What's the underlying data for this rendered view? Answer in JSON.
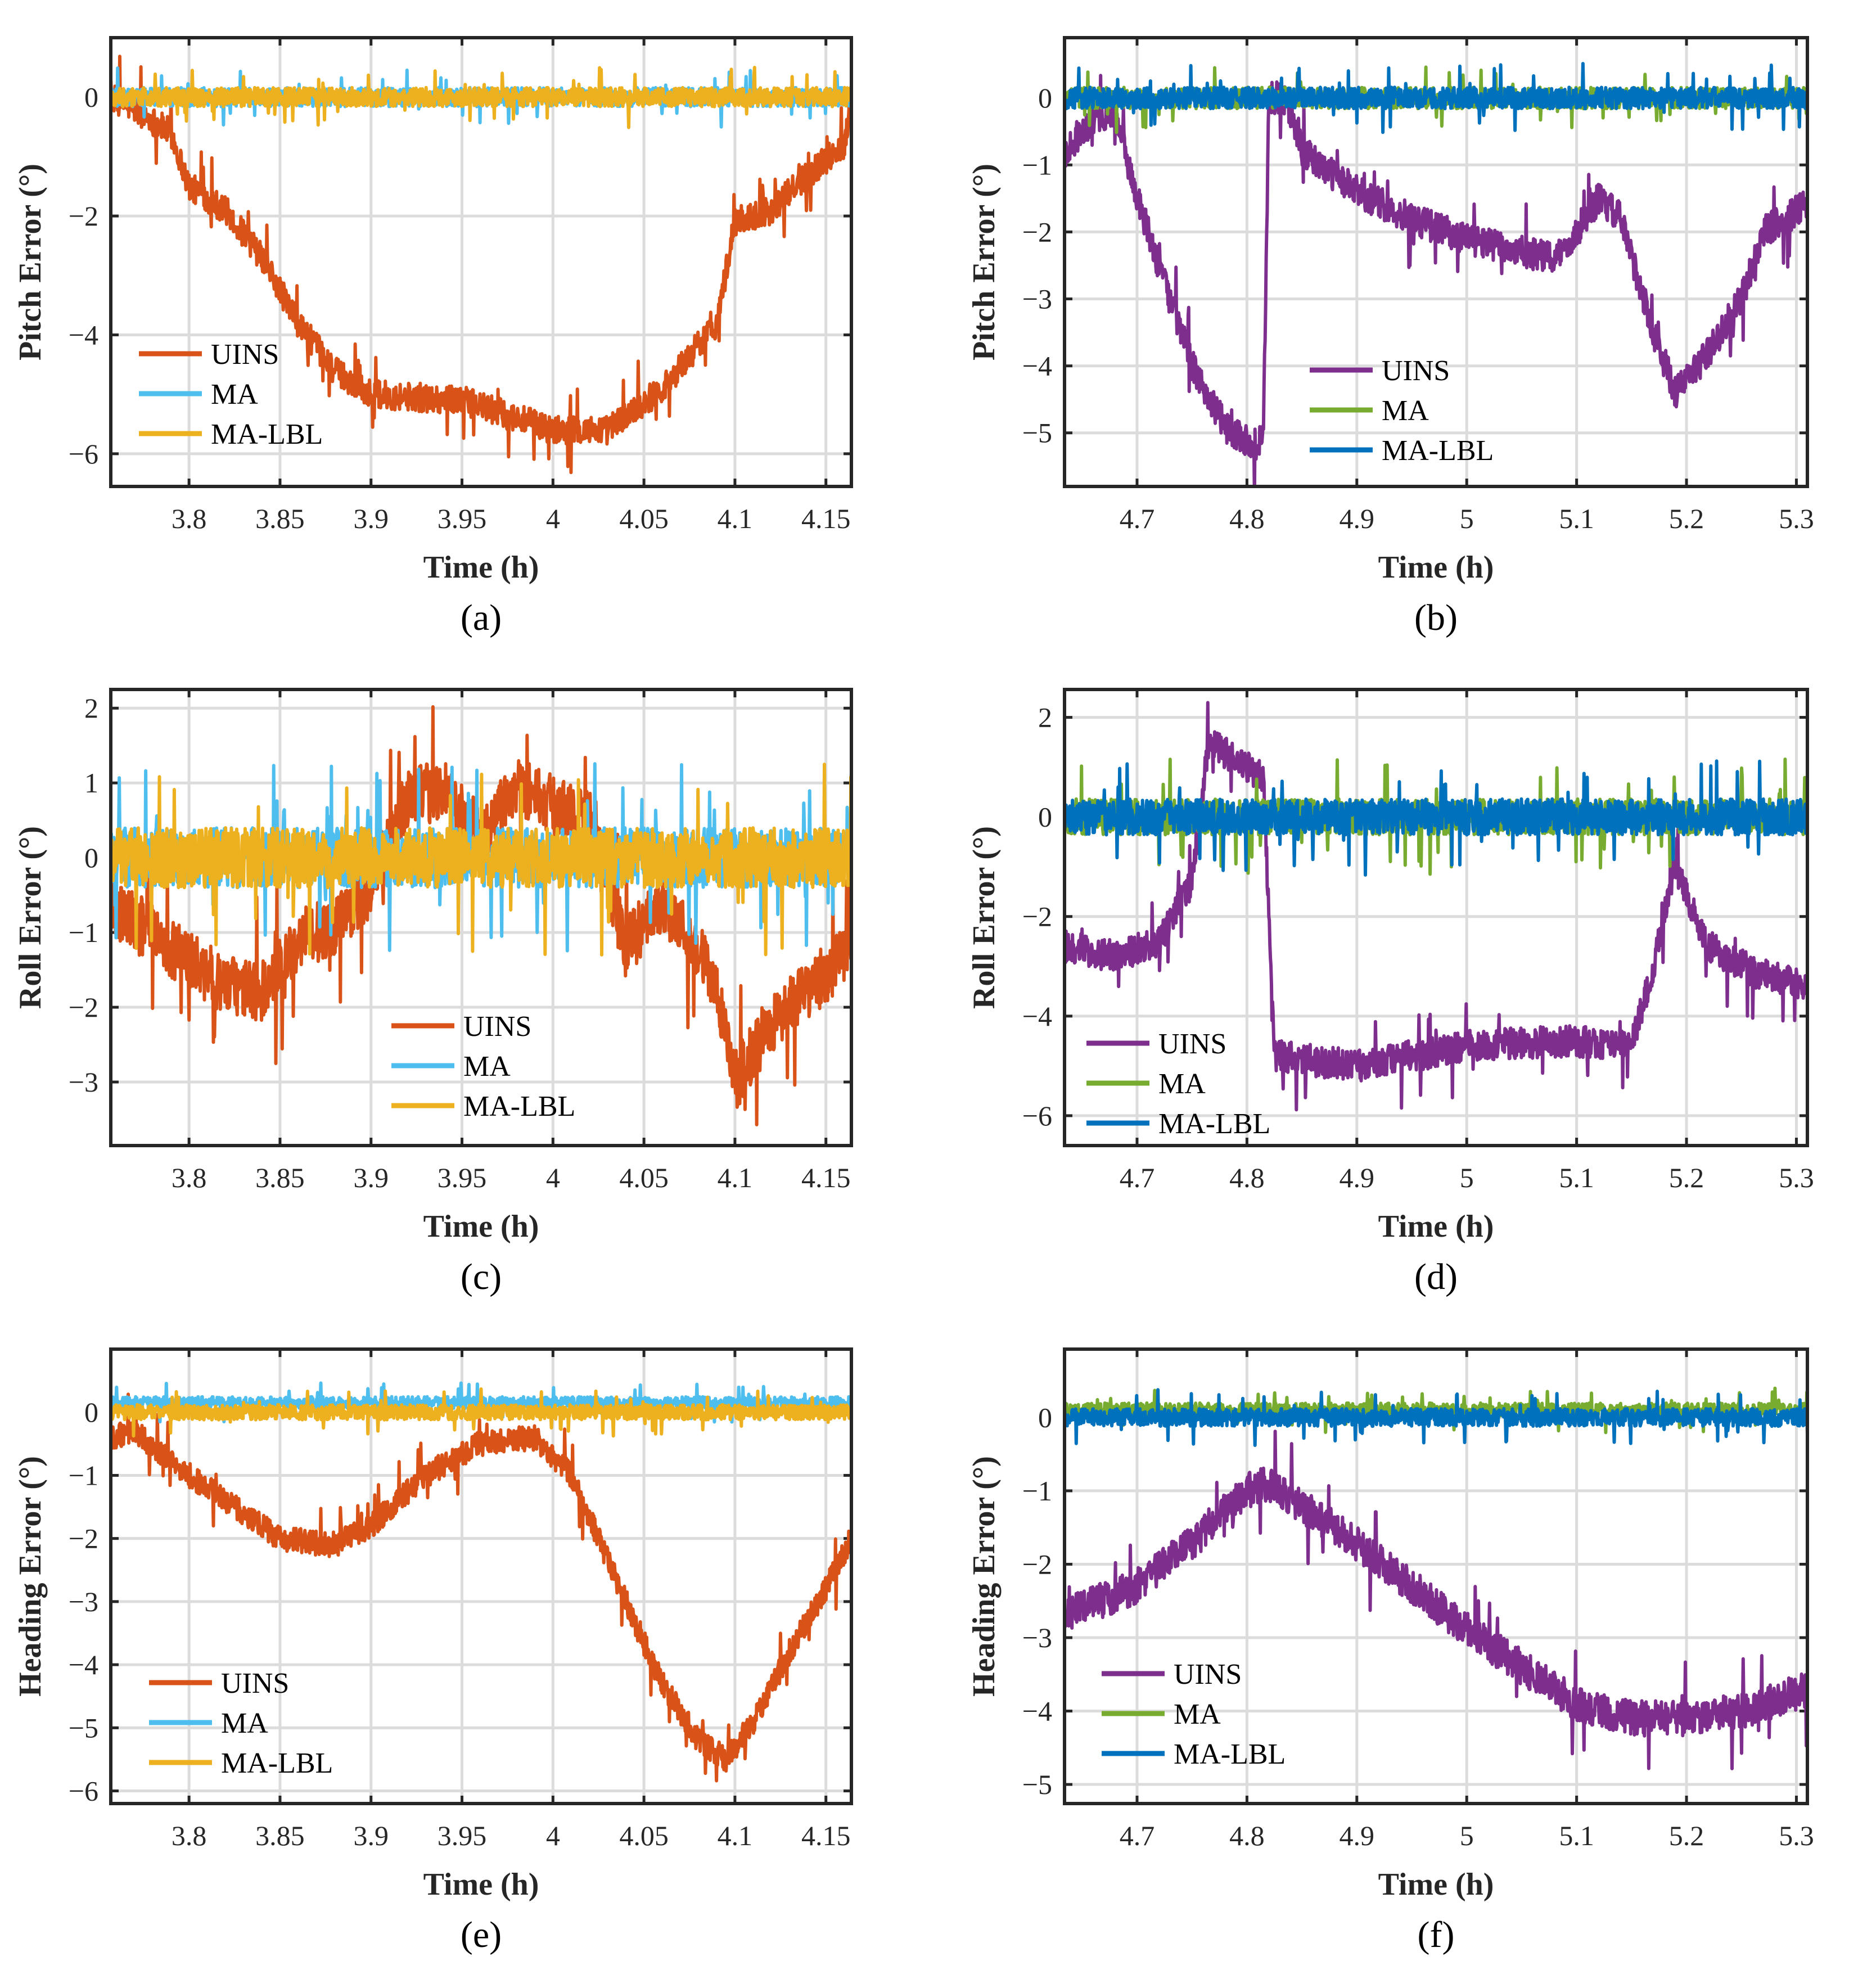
{
  "chart_data": [
    {
      "panel_label": "(a)",
      "type": "line",
      "xlabel": "Time (h)",
      "ylabel": "Pitch Error (°)",
      "xlim": [
        3.757,
        4.164
      ],
      "ylim": [
        -6.55,
        1.0
      ],
      "xticks": [
        3.8,
        3.85,
        3.9,
        3.95,
        4,
        4.05,
        4.1,
        4.15
      ],
      "yticks": [
        0,
        -2,
        -4,
        -6
      ],
      "grid": true,
      "legend_location": "lower-left",
      "series": [
        {
          "name": "UINS",
          "color": "#D95319",
          "noise": 0.3,
          "keypoints": [
            [
              3.757,
              0
            ],
            [
              3.77,
              -0.2
            ],
            [
              3.79,
              -0.6
            ],
            [
              3.8,
              -1.5
            ],
            [
              3.82,
              -1.9
            ],
            [
              3.84,
              -2.7
            ],
            [
              3.86,
              -3.8
            ],
            [
              3.88,
              -4.6
            ],
            [
              3.9,
              -5.0
            ],
            [
              3.95,
              -5.1
            ],
            [
              4.0,
              -5.6
            ],
            [
              4.03,
              -5.6
            ],
            [
              4.06,
              -4.9
            ],
            [
              4.09,
              -3.8
            ],
            [
              4.1,
              -2.1
            ],
            [
              4.12,
              -1.9
            ],
            [
              4.14,
              -1.3
            ],
            [
              4.16,
              -0.8
            ],
            [
              4.164,
              0
            ]
          ]
        },
        {
          "name": "MA",
          "color": "#4DBEEE",
          "noise": 0.2,
          "keypoints": [
            [
              3.757,
              0
            ],
            [
              4.164,
              0
            ]
          ]
        },
        {
          "name": "MA-LBL",
          "color": "#EDB120",
          "noise": 0.2,
          "keypoints": [
            [
              3.757,
              0
            ],
            [
              4.164,
              0
            ]
          ]
        }
      ]
    },
    {
      "panel_label": "(b)",
      "type": "line",
      "xlabel": "Time (h)",
      "ylabel": "Pitch Error (°)",
      "xlim": [
        4.634,
        5.31
      ],
      "ylim": [
        -5.8,
        0.9
      ],
      "xticks": [
        4.7,
        4.8,
        4.9,
        5,
        5.1,
        5.2,
        5.3
      ],
      "yticks": [
        0,
        -1,
        -2,
        -3,
        -4,
        -5
      ],
      "grid": true,
      "legend_location": "lower-center",
      "series": [
        {
          "name": "UINS",
          "color": "#7E2F8E",
          "noise": 0.3,
          "keypoints": [
            [
              4.634,
              -0.8
            ],
            [
              4.66,
              -0.3
            ],
            [
              4.68,
              -0.2
            ],
            [
              4.7,
              -1.5
            ],
            [
              4.73,
              -3.0
            ],
            [
              4.75,
              -4.0
            ],
            [
              4.78,
              -4.9
            ],
            [
              4.81,
              -5.2
            ],
            [
              4.815,
              -5.0
            ],
            [
              4.82,
              0
            ],
            [
              4.835,
              0
            ],
            [
              4.85,
              -0.8
            ],
            [
              4.9,
              -1.4
            ],
            [
              4.95,
              -1.8
            ],
            [
              5.0,
              -2.1
            ],
            [
              5.05,
              -2.3
            ],
            [
              5.08,
              -2.4
            ],
            [
              5.1,
              -2.0
            ],
            [
              5.12,
              -1.5
            ],
            [
              5.14,
              -1.8
            ],
            [
              5.17,
              -3.5
            ],
            [
              5.19,
              -4.4
            ],
            [
              5.22,
              -3.8
            ],
            [
              5.25,
              -3.0
            ],
            [
              5.27,
              -2.0
            ],
            [
              5.31,
              -1.6
            ]
          ]
        },
        {
          "name": "MA",
          "color": "#77AC30",
          "noise": 0.2,
          "keypoints": [
            [
              4.634,
              0
            ],
            [
              5.31,
              0
            ]
          ]
        },
        {
          "name": "MA-LBL",
          "color": "#0072BD",
          "noise": 0.2,
          "keypoints": [
            [
              4.634,
              0
            ],
            [
              5.31,
              0
            ]
          ]
        }
      ]
    },
    {
      "panel_label": "(c)",
      "type": "line",
      "xlabel": "Time (h)",
      "ylabel": "Roll Error (°)",
      "xlim": [
        3.757,
        4.164
      ],
      "ylim": [
        -3.85,
        2.25
      ],
      "xticks": [
        3.8,
        3.85,
        3.9,
        3.95,
        4,
        4.05,
        4.1,
        4.15
      ],
      "yticks": [
        2,
        1,
        0,
        -1,
        -2,
        -3
      ],
      "grid": true,
      "legend_location": "lower-center",
      "series": [
        {
          "name": "UINS",
          "color": "#D95319",
          "noise": 0.5,
          "keypoints": [
            [
              3.757,
              -0.7
            ],
            [
              3.78,
              -1.0
            ],
            [
              3.8,
              -1.4
            ],
            [
              3.82,
              -1.7
            ],
            [
              3.84,
              -1.8
            ],
            [
              3.86,
              -1.1
            ],
            [
              3.88,
              -0.9
            ],
            [
              3.9,
              -0.4
            ],
            [
              3.92,
              0.8
            ],
            [
              3.94,
              0.9
            ],
            [
              3.96,
              0.3
            ],
            [
              3.98,
              1.0
            ],
            [
              4.0,
              0.7
            ],
            [
              4.02,
              0.5
            ],
            [
              4.04,
              -1.2
            ],
            [
              4.06,
              -0.6
            ],
            [
              4.08,
              -1.2
            ],
            [
              4.09,
              -1.8
            ],
            [
              4.1,
              -3.0
            ],
            [
              4.12,
              -2.2
            ],
            [
              4.14,
              -1.8
            ],
            [
              4.16,
              -1.3
            ],
            [
              4.164,
              -1.0
            ]
          ]
        },
        {
          "name": "MA",
          "color": "#4DBEEE",
          "noise": 0.5,
          "keypoints": [
            [
              3.757,
              0
            ],
            [
              4.164,
              0
            ]
          ]
        },
        {
          "name": "MA-LBL",
          "color": "#EDB120",
          "noise": 0.5,
          "keypoints": [
            [
              3.757,
              0
            ],
            [
              4.164,
              0
            ]
          ]
        }
      ]
    },
    {
      "panel_label": "(d)",
      "type": "line",
      "xlabel": "Time (h)",
      "ylabel": "Roll Error (°)",
      "xlim": [
        4.634,
        5.31
      ],
      "ylim": [
        -6.6,
        2.56
      ],
      "xticks": [
        4.7,
        4.8,
        4.9,
        5,
        5.1,
        5.2,
        5.3
      ],
      "yticks": [
        2,
        0,
        -2,
        -4,
        -6
      ],
      "grid": true,
      "legend_location": "lower-left",
      "series": [
        {
          "name": "UINS",
          "color": "#7E2F8E",
          "noise": 0.4,
          "keypoints": [
            [
              4.634,
              -2.6
            ],
            [
              4.68,
              -2.8
            ],
            [
              4.72,
              -2.5
            ],
            [
              4.75,
              -1.3
            ],
            [
              4.765,
              1.5
            ],
            [
              4.8,
              1.0
            ],
            [
              4.815,
              0.8
            ],
            [
              4.825,
              -4.8
            ],
            [
              4.9,
              -5.0
            ],
            [
              5.0,
              -4.6
            ],
            [
              5.1,
              -4.5
            ],
            [
              5.15,
              -4.6
            ],
            [
              5.17,
              -3.0
            ],
            [
              5.19,
              -1.0
            ],
            [
              5.22,
              -2.6
            ],
            [
              5.26,
              -3.1
            ],
            [
              5.31,
              -3.4
            ]
          ]
        },
        {
          "name": "MA",
          "color": "#77AC30",
          "noise": 0.45,
          "keypoints": [
            [
              4.634,
              0
            ],
            [
              5.31,
              0
            ]
          ]
        },
        {
          "name": "MA-LBL",
          "color": "#0072BD",
          "noise": 0.45,
          "keypoints": [
            [
              4.634,
              0
            ],
            [
              5.31,
              0
            ]
          ]
        }
      ]
    },
    {
      "panel_label": "(e)",
      "type": "line",
      "xlabel": "Time (h)",
      "ylabel": "Heading Error (°)",
      "xlim": [
        3.757,
        4.164
      ],
      "ylim": [
        -6.2,
        1.0
      ],
      "xticks": [
        3.8,
        3.85,
        3.9,
        3.95,
        4,
        4.05,
        4.1,
        4.15
      ],
      "yticks": [
        0,
        -1,
        -2,
        -3,
        -4,
        -5,
        -6
      ],
      "grid": true,
      "legend_location": "lower-left",
      "series": [
        {
          "name": "UINS",
          "color": "#D95319",
          "noise": 0.25,
          "keypoints": [
            [
              3.757,
              -0.4
            ],
            [
              3.77,
              -0.3
            ],
            [
              3.8,
              -1.0
            ],
            [
              3.83,
              -1.6
            ],
            [
              3.85,
              -2.0
            ],
            [
              3.88,
              -2.1
            ],
            [
              3.9,
              -1.8
            ],
            [
              3.93,
              -1.0
            ],
            [
              3.96,
              -0.5
            ],
            [
              3.99,
              -0.4
            ],
            [
              4.01,
              -1.0
            ],
            [
              4.04,
              -3.0
            ],
            [
              4.06,
              -4.3
            ],
            [
              4.08,
              -5.2
            ],
            [
              4.095,
              -5.5
            ],
            [
              4.11,
              -4.9
            ],
            [
              4.13,
              -3.8
            ],
            [
              4.15,
              -2.8
            ],
            [
              4.164,
              -2.0
            ]
          ]
        },
        {
          "name": "MA",
          "color": "#4DBEEE",
          "noise": 0.12,
          "keypoints": [
            [
              3.757,
              0.15
            ],
            [
              4.164,
              0.15
            ]
          ]
        },
        {
          "name": "MA-LBL",
          "color": "#EDB120",
          "noise": 0.15,
          "keypoints": [
            [
              3.757,
              0
            ],
            [
              4.164,
              0
            ]
          ]
        }
      ]
    },
    {
      "panel_label": "(f)",
      "type": "line",
      "xlabel": "Time (h)",
      "ylabel": "Heading Error (°)",
      "xlim": [
        4.634,
        5.31
      ],
      "ylim": [
        -5.26,
        0.93
      ],
      "xticks": [
        4.7,
        4.8,
        4.9,
        5,
        5.1,
        5.2,
        5.3
      ],
      "yticks": [
        0,
        -1,
        -2,
        -3,
        -4,
        -5
      ],
      "grid": true,
      "legend_location": "lower-left",
      "series": [
        {
          "name": "UINS",
          "color": "#7E2F8E",
          "noise": 0.3,
          "keypoints": [
            [
              4.634,
              -2.7
            ],
            [
              4.7,
              -2.3
            ],
            [
              4.75,
              -1.7
            ],
            [
              4.8,
              -1.0
            ],
            [
              4.82,
              -0.9
            ],
            [
              4.88,
              -1.5
            ],
            [
              4.95,
              -2.3
            ],
            [
              5.0,
              -2.9
            ],
            [
              5.05,
              -3.4
            ],
            [
              5.1,
              -3.9
            ],
            [
              5.15,
              -4.1
            ],
            [
              5.2,
              -4.1
            ],
            [
              5.25,
              -4.0
            ],
            [
              5.31,
              -3.7
            ]
          ]
        },
        {
          "name": "MA",
          "color": "#77AC30",
          "noise": 0.12,
          "keypoints": [
            [
              4.634,
              0.1
            ],
            [
              5.31,
              0.1
            ]
          ]
        },
        {
          "name": "MA-LBL",
          "color": "#0072BD",
          "noise": 0.15,
          "keypoints": [
            [
              4.634,
              0
            ],
            [
              5.31,
              0
            ]
          ]
        }
      ]
    }
  ]
}
